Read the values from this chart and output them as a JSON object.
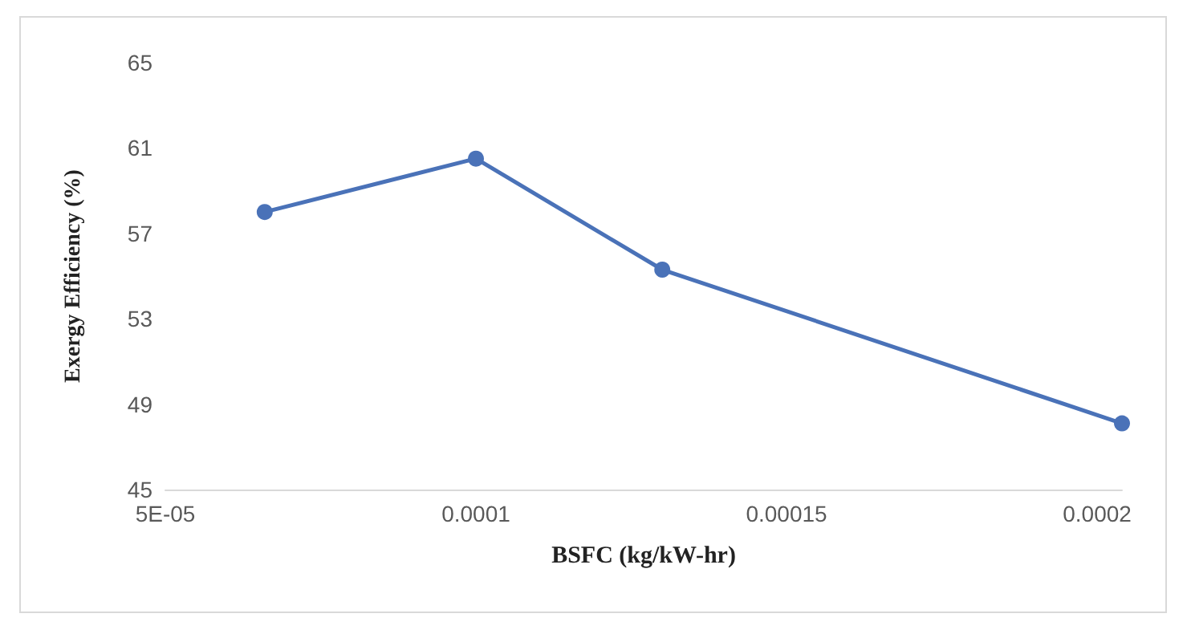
{
  "chart_data": {
    "type": "line",
    "xlabel": "BSFC (kg/kW-hr)",
    "ylabel": "Exergy Efficiency (%)",
    "x": [
      6.6e-05,
      0.0001,
      0.00013,
      0.000204
    ],
    "series": [
      {
        "color": "#4a72b8",
        "values": [
          58.0,
          60.5,
          55.3,
          48.1
        ]
      }
    ],
    "xlim": [
      5e-05,
      0.000204
    ],
    "xticks": [
      {
        "value": 5e-05,
        "label": "5E-05"
      },
      0.0001,
      0.00015,
      0.0002
    ],
    "ylim": [
      45,
      65
    ],
    "yticks": [
      45,
      49,
      53,
      57,
      61,
      65
    ],
    "grid": false,
    "marker": "circle",
    "line_style": "solid"
  }
}
